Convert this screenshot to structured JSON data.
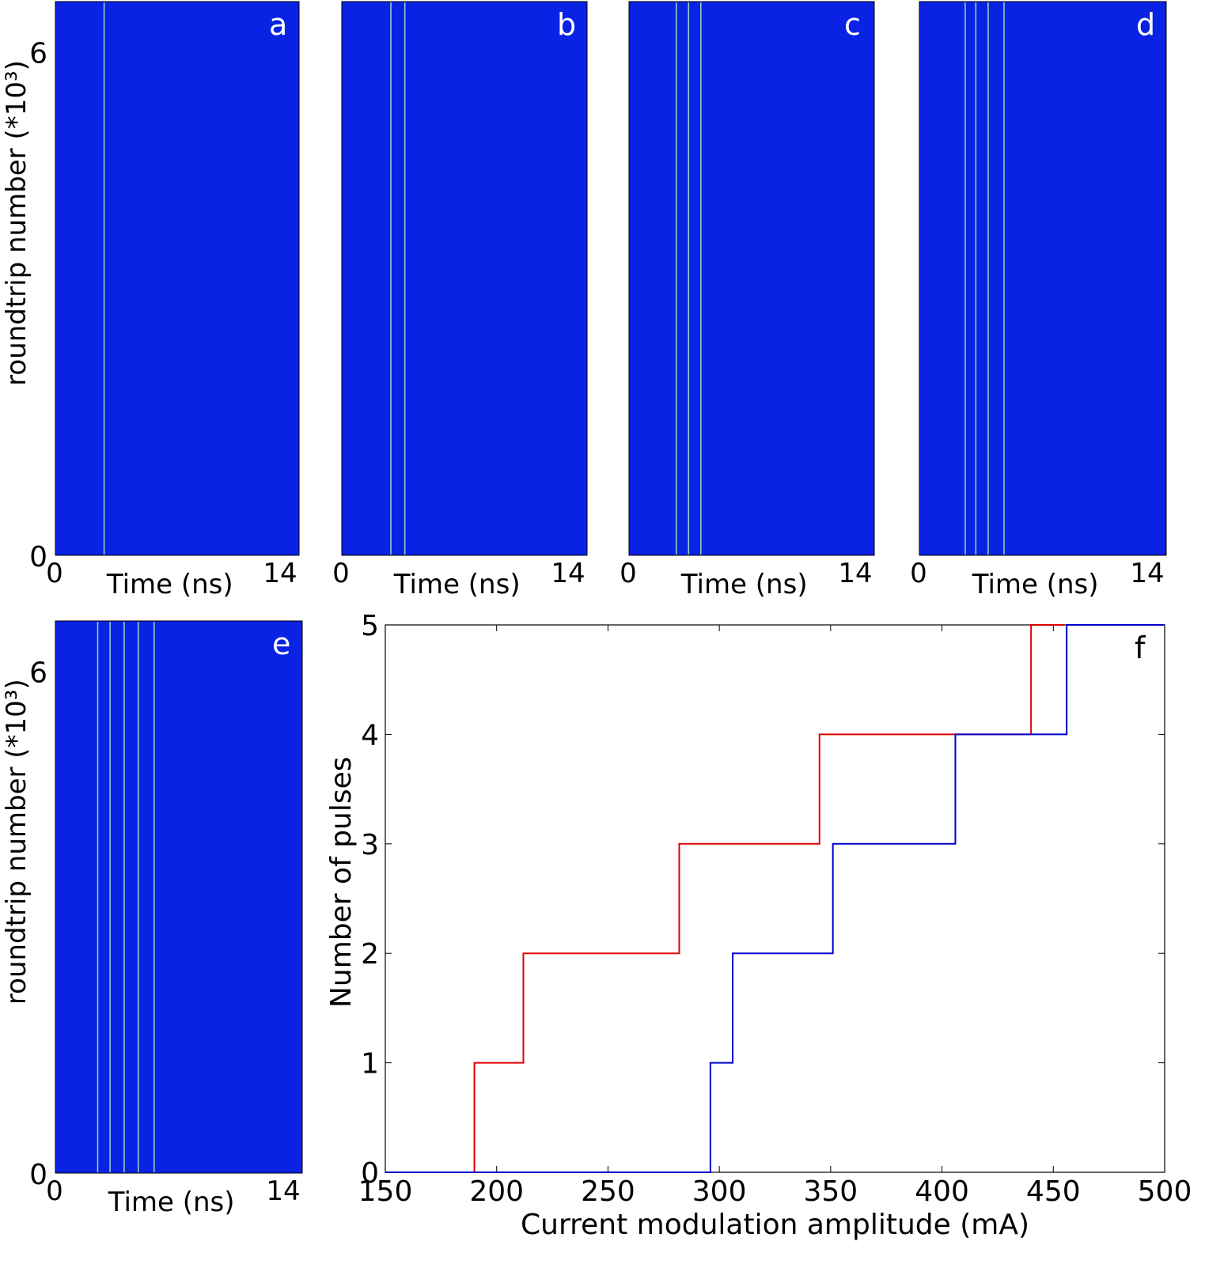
{
  "chart_data": [
    {
      "type": "heatmap",
      "panel_label": "a",
      "xlabel": "Time (ns)",
      "ylabel": "roundtrip number (*10³)",
      "xticks": [
        "0",
        "14"
      ],
      "yticks": [
        "0",
        "6"
      ],
      "xlim": [
        0,
        14
      ],
      "ylim": [
        0,
        6.6
      ],
      "pulse_times": [
        2.8
      ],
      "colors": {
        "background": "#0a22e4",
        "pulse": "#8fd0c0"
      }
    },
    {
      "type": "heatmap",
      "panel_label": "b",
      "xlabel": "Time (ns)",
      "ylabel": "",
      "xticks": [
        "0",
        "14"
      ],
      "yticks": [],
      "xlim": [
        0,
        14
      ],
      "ylim": [
        0,
        6.6
      ],
      "pulse_times": [
        2.8,
        3.6
      ],
      "colors": {
        "background": "#0a22e4",
        "pulse": "#8fd0c0"
      }
    },
    {
      "type": "heatmap",
      "panel_label": "c",
      "xlabel": "Time (ns)",
      "ylabel": "",
      "xticks": [
        "0",
        "14"
      ],
      "yticks": [],
      "xlim": [
        0,
        14
      ],
      "ylim": [
        0,
        6.6
      ],
      "pulse_times": [
        2.7,
        3.4,
        4.1
      ],
      "colors": {
        "background": "#0a22e4",
        "pulse": "#8fd0c0"
      }
    },
    {
      "type": "heatmap",
      "panel_label": "d",
      "xlabel": "Time (ns)",
      "ylabel": "",
      "xticks": [
        "0",
        "14"
      ],
      "yticks": [],
      "xlim": [
        0,
        14
      ],
      "ylim": [
        0,
        6.6
      ],
      "pulse_times": [
        2.6,
        3.2,
        3.9,
        4.8
      ],
      "colors": {
        "background": "#0a22e4",
        "pulse": "#8fd0c0"
      }
    },
    {
      "type": "heatmap",
      "panel_label": "e",
      "xlabel": "Time (ns)",
      "ylabel": "roundtrip number (*10³)",
      "xticks": [
        "0",
        "14"
      ],
      "yticks": [
        "0",
        "6"
      ],
      "xlim": [
        0,
        14
      ],
      "ylim": [
        0,
        6.6
      ],
      "pulse_times": [
        2.4,
        3.1,
        3.9,
        4.7,
        5.6
      ],
      "colors": {
        "background": "#0a22e4",
        "pulse": "#8fd0c0"
      }
    },
    {
      "type": "line",
      "panel_label": "f",
      "title": "",
      "xlabel": "Current modulation amplitude (mA)",
      "ylabel": "Number of pulses",
      "xlim": [
        150,
        500
      ],
      "ylim": [
        0,
        5
      ],
      "xticks": [
        150,
        200,
        250,
        300,
        350,
        400,
        450,
        500
      ],
      "yticks": [
        0,
        1,
        2,
        3,
        4,
        5
      ],
      "grid": false,
      "series": [
        {
          "name": "red",
          "color": "#e00000",
          "x": [
            150,
            190,
            190,
            212,
            212,
            282,
            282,
            345,
            345,
            440,
            440,
            455
          ],
          "y": [
            0,
            0,
            1,
            1,
            2,
            2,
            3,
            3,
            4,
            4,
            5,
            5
          ]
        },
        {
          "name": "blue",
          "color": "#0000cc",
          "x": [
            150,
            296,
            296,
            306,
            306,
            351,
            351,
            406,
            406,
            456,
            456,
            500
          ],
          "y": [
            0,
            0,
            1,
            1,
            2,
            2,
            3,
            3,
            4,
            4,
            5,
            5
          ]
        }
      ]
    }
  ]
}
